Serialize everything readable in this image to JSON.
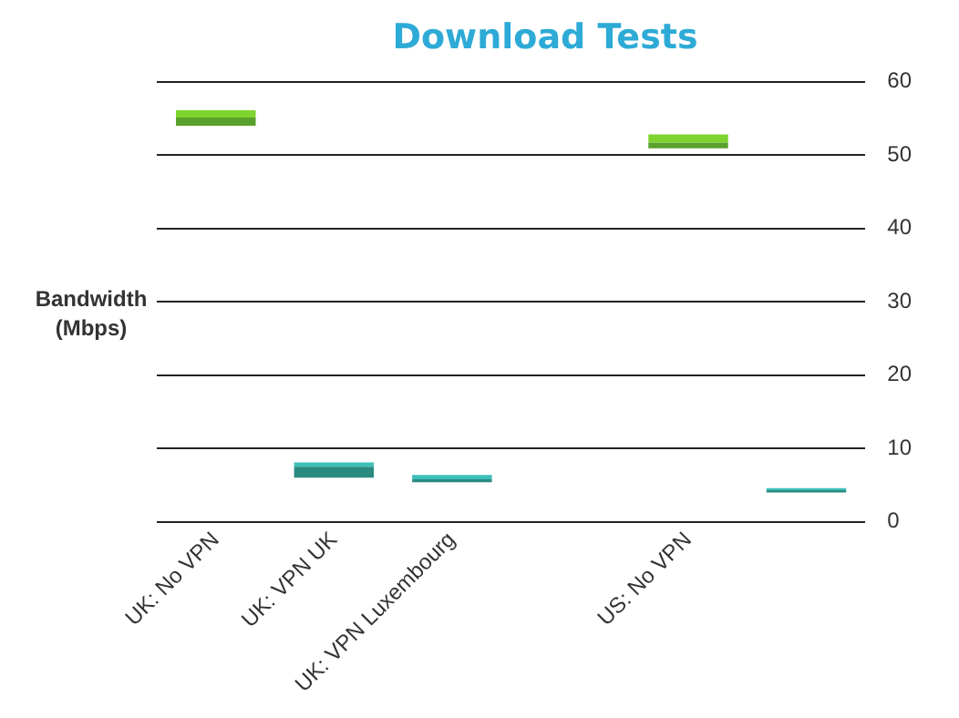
{
  "chart_data": {
    "type": "bar",
    "title": "Download Tests",
    "ylabel": "Bandwidth (Mbps)",
    "categories": [
      "UK: No VPN",
      "UK: VPN UK",
      "UK: VPN Luxembourg",
      null,
      "US: No VPN",
      null
    ],
    "series": [
      {
        "colors": [
          "#5aa02c",
          "#2a8a80",
          "#2a8a80",
          null,
          "#5aa02c",
          "#2a8a80"
        ],
        "base": [
          54.0,
          6.0,
          5.4,
          null,
          50.9,
          4.0
        ],
        "values": [
          1.1,
          1.5,
          0.4,
          null,
          0.8,
          0.3
        ]
      },
      {
        "colors": [
          "#7ed32f",
          "#3cc0b8",
          "#3cc0b8",
          null,
          "#7ed32f",
          "#3cc0b8"
        ],
        "base": [
          55.1,
          7.5,
          5.8,
          null,
          51.7,
          4.3
        ],
        "values": [
          1.0,
          0.6,
          0.6,
          null,
          1.1,
          0.3
        ]
      }
    ],
    "ylim": [
      0,
      60
    ],
    "yticks": [
      0,
      10,
      20,
      30,
      40,
      50,
      60
    ],
    "grid": "y",
    "legend": false
  }
}
